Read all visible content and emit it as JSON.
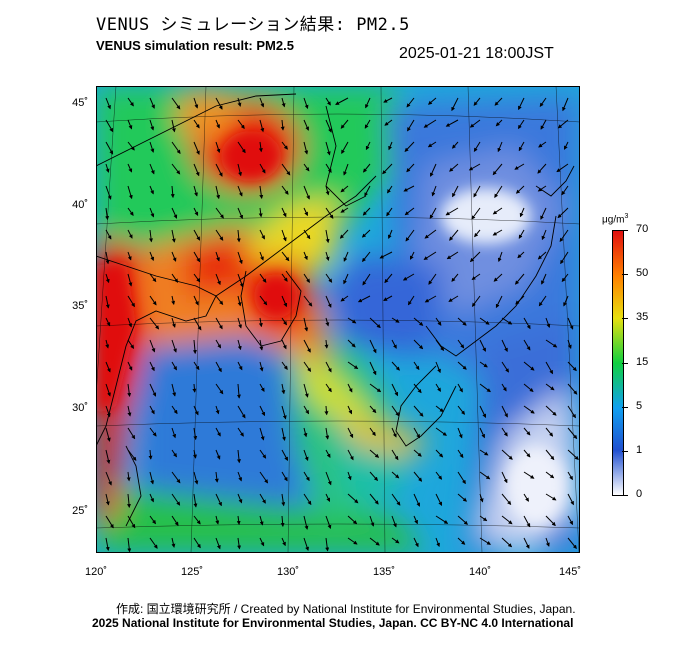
{
  "title": {
    "japanese": "VENUS シミュレーション結果: PM2.5",
    "english": "VENUS simulation result: PM2.5"
  },
  "timestamp": "2025-01-21 18:00JST",
  "map": {
    "latitude_labels": [
      "45˚",
      "40˚",
      "35˚",
      "30˚",
      "25˚"
    ],
    "longitude_labels": [
      "120˚",
      "125˚",
      "130˚",
      "135˚",
      "140˚",
      "145˚"
    ],
    "extent": {
      "lon_min": 120,
      "lon_max": 145,
      "lat_min": 23,
      "lat_max": 46
    }
  },
  "colorbar": {
    "unit": "μg/m",
    "unit_superscript": "3",
    "tick_labels": [
      "70",
      "50",
      "35",
      "15",
      "5",
      "1",
      "0"
    ],
    "colors": [
      "#ffffff",
      "#2050d0",
      "#10a0f0",
      "#10d040",
      "#e8e010",
      "#ff8000",
      "#e01010"
    ]
  },
  "footer": {
    "credit": "作成: 国立環境研究所 / Created by National Institute for Environmental Studies, Japan.",
    "copyright": "2025 National Institute for Environmental Studies, Japan. CC BY-NC 4.0 International"
  }
}
